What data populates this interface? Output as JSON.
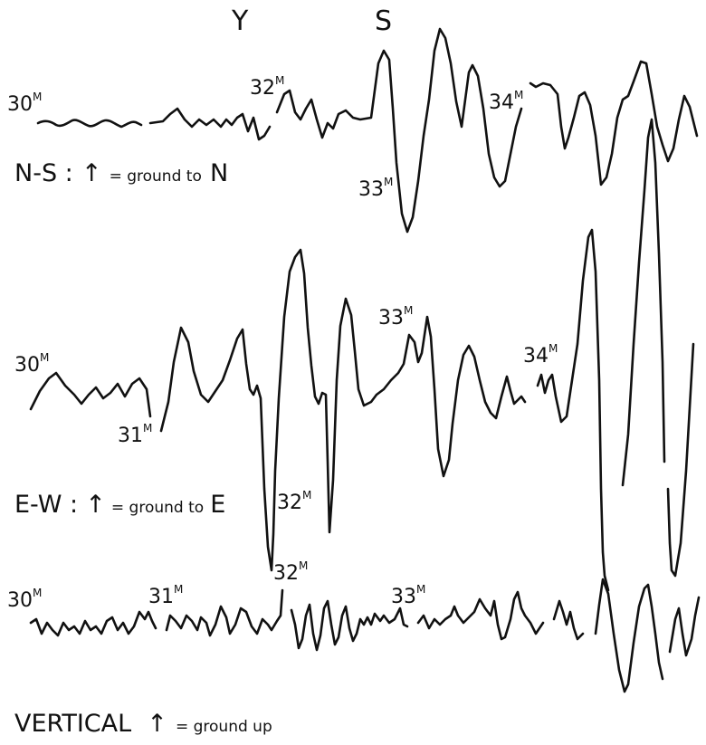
{
  "phase_marks": {
    "y": "Y",
    "s": "S"
  },
  "components": [
    {
      "id": "ns",
      "caption_prefix": "N-S :",
      "caption_arrow": "↑",
      "caption_mid": "= ground to",
      "caption_dir": "N",
      "minute_marks": [
        {
          "num": "30",
          "sup": "M"
        },
        {
          "num": "32",
          "sup": "M"
        },
        {
          "num": "33",
          "sup": "M"
        },
        {
          "num": "34",
          "sup": "M"
        }
      ]
    },
    {
      "id": "ew",
      "caption_prefix": "E-W :",
      "caption_arrow": "↑",
      "caption_mid": "= ground to",
      "caption_dir": "E",
      "minute_marks": [
        {
          "num": "30",
          "sup": "M"
        },
        {
          "num": "31",
          "sup": "M"
        },
        {
          "num": "32",
          "sup": "M"
        },
        {
          "num": "33",
          "sup": "M"
        },
        {
          "num": "34",
          "sup": "M"
        }
      ]
    },
    {
      "id": "vertical",
      "caption_prefix": "VERTICAL",
      "caption_arrow": "↑",
      "caption_mid": "= ground up",
      "caption_dir": "",
      "minute_marks": [
        {
          "num": "30",
          "sup": "M"
        },
        {
          "num": "31",
          "sup": "M"
        },
        {
          "num": "32",
          "sup": "M"
        },
        {
          "num": "33",
          "sup": "M"
        }
      ]
    }
  ]
}
